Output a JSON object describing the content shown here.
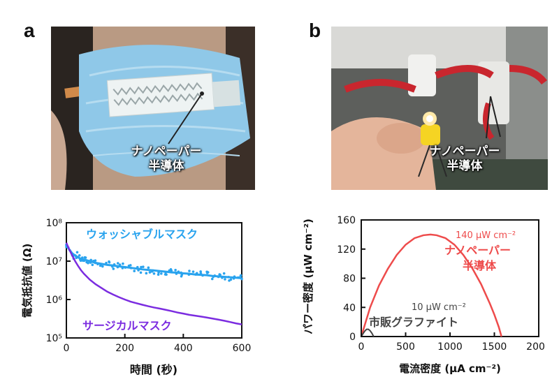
{
  "panels": {
    "a": {
      "letter": "a",
      "photo_caption_line1": "ナノペーパー",
      "photo_caption_line2": "半導体"
    },
    "b": {
      "letter": "b",
      "photo_caption_line1": "ナノペーパー",
      "photo_caption_line2": "半導体"
    }
  },
  "colors": {
    "washable": "#29a3ee",
    "surgical": "#7b2ce0",
    "nanopaper": "#ee4b4b",
    "commercial": "#444444"
  },
  "chart_data": [
    {
      "type": "scatter",
      "ylabel": "電気抵抗値 (Ω)",
      "xlabel": "時間 (秒)",
      "xlim": [
        0,
        600
      ],
      "ylim": [
        100000,
        100000000
      ],
      "yscale": "log",
      "x_ticks": [
        "0",
        "200",
        "400",
        "600"
      ],
      "y_ticks": [
        "10⁵",
        "10⁶",
        "10⁷",
        "10⁸"
      ],
      "series": [
        {
          "name": "ウォッシャブルマスク",
          "x": [
            0,
            10,
            20,
            30,
            40,
            50,
            60,
            70,
            80,
            90,
            100,
            120,
            140,
            160,
            180,
            200,
            220,
            240,
            260,
            280,
            300,
            320,
            340,
            360,
            380,
            400,
            420,
            440,
            460,
            480,
            500,
            520,
            540,
            560,
            580,
            600
          ],
          "y": [
            26000000,
            20000000,
            16000000,
            14000000,
            12500000,
            11500000,
            11000000,
            10500000,
            10000000,
            9500000,
            9000000,
            8500000,
            8000000,
            7700000,
            7300000,
            7000000,
            6700000,
            6400000,
            6100000,
            5900000,
            5700000,
            5500000,
            5300000,
            5100000,
            5000000,
            4800000,
            4700000,
            4500000,
            4400000,
            4300000,
            4100000,
            4000000,
            3900000,
            3800000,
            3700000,
            3600000
          ]
        },
        {
          "name": "サージカルマスク",
          "x": [
            0,
            10,
            20,
            30,
            40,
            50,
            60,
            80,
            100,
            120,
            140,
            160,
            180,
            200,
            220,
            240,
            260,
            280,
            300,
            320,
            340,
            360,
            380,
            400,
            420,
            440,
            460,
            480,
            500,
            520,
            540,
            560,
            580,
            600
          ],
          "y": [
            30000000,
            20000000,
            14000000,
            10000000,
            7500000,
            5800000,
            4700000,
            3300000,
            2500000,
            2000000,
            1600000,
            1350000,
            1150000,
            1000000,
            880000,
            800000,
            730000,
            670000,
            620000,
            580000,
            540000,
            500000,
            460000,
            430000,
            400000,
            380000,
            360000,
            340000,
            320000,
            300000,
            280000,
            260000,
            240000,
            225000
          ]
        }
      ]
    },
    {
      "type": "line",
      "ylabel": "パワー密度 (μW cm⁻²)",
      "xlabel": "電流密度 (μA cm⁻²)",
      "xlim": [
        0,
        2000
      ],
      "ylim": [
        0,
        160
      ],
      "x_ticks": [
        "0",
        "500",
        "1000",
        "1500",
        "2000"
      ],
      "y_ticks": [
        "0",
        "40",
        "80",
        "120",
        "160"
      ],
      "series": [
        {
          "name": "ナノペーパー半導体",
          "x": [
            0,
            100,
            200,
            300,
            400,
            500,
            600,
            700,
            780,
            850,
            950,
            1050,
            1150,
            1250,
            1350,
            1450,
            1500,
            1550,
            1580
          ],
          "y": [
            0,
            40,
            70,
            93,
            112,
            126,
            135,
            139,
            140,
            139,
            135,
            126,
            112,
            94,
            72,
            45,
            30,
            13,
            0
          ]
        },
        {
          "name": "市販グラファイト",
          "x": [
            0,
            20,
            40,
            60,
            80,
            100,
            120,
            140
          ],
          "y": [
            0,
            4,
            7.5,
            10,
            10,
            8,
            4.5,
            0
          ]
        }
      ],
      "annotations": [
        {
          "text": "140 μW cm⁻²",
          "series": "ナノペーパー半導体"
        },
        {
          "text": "10 μW cm⁻²",
          "series": "市販グラファイト"
        }
      ]
    }
  ]
}
